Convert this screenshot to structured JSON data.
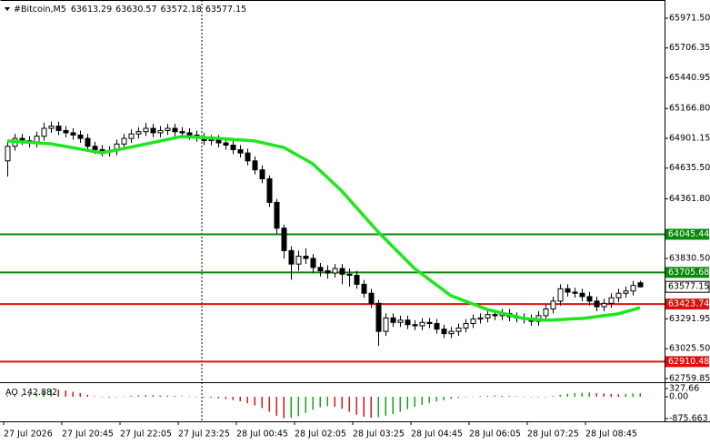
{
  "chart_data": {
    "type": "candlestick",
    "symbol": "#Bitcoin,M5",
    "categories": [
      "27 Jul 2026",
      null,
      null,
      null,
      null,
      null,
      null,
      null,
      "27 Jul 20:45",
      null,
      null,
      null,
      null,
      null,
      null,
      null,
      "27 Jul 22:05",
      null,
      null,
      null,
      null,
      null,
      null,
      null,
      "27 Jul 23:25",
      null,
      null,
      null,
      null,
      null,
      null,
      null,
      "28 Jul 00:45",
      null,
      null,
      null,
      null,
      null,
      null,
      null,
      "28 Jul 02:05",
      null,
      null,
      null,
      null,
      null,
      null,
      null,
      "28 Jul 03:25",
      null,
      null,
      null,
      null,
      null,
      null,
      null,
      "28 Jul 04:45",
      null,
      null,
      null,
      null,
      null,
      null,
      null,
      "28 Jul 06:05",
      null,
      null,
      null,
      null,
      null,
      null,
      null,
      "28 Jul 07:25",
      null,
      null,
      null,
      null,
      null,
      null,
      null,
      "28 Jul 08:45",
      null,
      null,
      null,
      null,
      null,
      null,
      null
    ],
    "open": [
      64700,
      64830,
      64900,
      64880,
      64860,
      64920,
      64990,
      65010,
      64970,
      64950,
      64930,
      64900,
      64830,
      64800,
      64780,
      64790,
      64850,
      64900,
      64940,
      64960,
      64990,
      64950,
      64970,
      64990,
      64960,
      64950,
      64930,
      64910,
      64880,
      64890,
      64860,
      64840,
      64800,
      64770,
      64700,
      64620,
      64540,
      64330,
      64100,
      63900,
      63780,
      63850,
      63830,
      63750,
      63720,
      63700,
      63740,
      63690,
      63680,
      63600,
      63520,
      63430,
      63180,
      63300,
      63260,
      63280,
      63240,
      63230,
      63260,
      63250,
      63200,
      63160,
      63180,
      63210,
      63250,
      63290,
      63300,
      63330,
      63320,
      63340,
      63310,
      63300,
      63290,
      63270,
      63320,
      63380,
      63450,
      63560,
      63530,
      63520,
      63490,
      63450,
      63400,
      63430,
      63480,
      63520,
      63540,
      63613.29
    ],
    "high": [
      64870,
      64940,
      64940,
      64920,
      64960,
      65040,
      65050,
      65050,
      65010,
      64990,
      64970,
      64940,
      64870,
      64840,
      64830,
      64890,
      64940,
      64980,
      65000,
      65040,
      65030,
      65010,
      65030,
      65030,
      65000,
      64990,
      64970,
      64950,
      64930,
      64930,
      64900,
      64880,
      64840,
      64810,
      64740,
      64660,
      64570,
      64360,
      64130,
      63940,
      63900,
      63920,
      63870,
      63790,
      63770,
      63780,
      63780,
      63740,
      63720,
      63640,
      63560,
      63460,
      63340,
      63340,
      63320,
      63320,
      63280,
      63300,
      63300,
      63290,
      63240,
      63220,
      63250,
      63290,
      63330,
      63340,
      63370,
      63370,
      63380,
      63380,
      63350,
      63340,
      63330,
      63360,
      63420,
      63490,
      63600,
      63600,
      63570,
      63560,
      63530,
      63490,
      63470,
      63520,
      63560,
      63580,
      63630,
      63630.57
    ],
    "low": [
      64560,
      64790,
      64840,
      64820,
      64820,
      64880,
      64950,
      64930,
      64910,
      64890,
      64860,
      64790,
      64760,
      64740,
      64740,
      64750,
      64810,
      64860,
      64900,
      64920,
      64910,
      64910,
      64930,
      64920,
      64910,
      64890,
      64870,
      64840,
      64840,
      64820,
      64800,
      64760,
      64730,
      64660,
      64580,
      64500,
      64290,
      64050,
      63830,
      63640,
      63720,
      63780,
      63700,
      63670,
      63650,
      63660,
      63600,
      63580,
      63560,
      63480,
      63390,
      63050,
      63140,
      63220,
      63220,
      63200,
      63190,
      63190,
      63210,
      63160,
      63120,
      63120,
      63140,
      63170,
      63210,
      63250,
      63260,
      63280,
      63280,
      63270,
      63260,
      63250,
      63230,
      63230,
      63280,
      63340,
      63410,
      63490,
      63480,
      63450,
      63410,
      63360,
      63360,
      63390,
      63440,
      63480,
      63500,
      63572.18
    ],
    "close": [
      64830,
      64900,
      64880,
      64860,
      64920,
      64990,
      65010,
      64970,
      64950,
      64930,
      64900,
      64830,
      64800,
      64780,
      64790,
      64850,
      64900,
      64940,
      64960,
      64990,
      64950,
      64970,
      64990,
      64960,
      64950,
      64930,
      64910,
      64880,
      64890,
      64860,
      64840,
      64800,
      64770,
      64700,
      64620,
      64540,
      64330,
      64100,
      63900,
      63780,
      63850,
      63830,
      63750,
      63720,
      63700,
      63740,
      63690,
      63680,
      63600,
      63520,
      63430,
      63180,
      63300,
      63260,
      63280,
      63240,
      63230,
      63260,
      63250,
      63200,
      63160,
      63180,
      63210,
      63250,
      63290,
      63300,
      63330,
      63320,
      63340,
      63310,
      63300,
      63290,
      63270,
      63320,
      63380,
      63450,
      63560,
      63530,
      63520,
      63490,
      63450,
      63400,
      63430,
      63480,
      63520,
      63540,
      63590,
      63577.15
    ],
    "ylim": [
      62727,
      66069
    ],
    "yticks": [
      {
        "value": 65971.5,
        "label": "65971.50"
      },
      65706.35,
      65440.95,
      {
        "value": 65166.8,
        "label": "65166.80"
      },
      64901.15,
      {
        "value": 64635.5,
        "label": "64635.50"
      },
      {
        "value": 64361.8,
        "label": "64361.80"
      },
      {
        "value": 63830.5,
        "label": "63830.50"
      },
      63291.95,
      {
        "value": 63025.5,
        "label": "63025.50"
      },
      62759.85
    ],
    "ma": {
      "color": "#1ee61e",
      "values": [
        64877,
        64873,
        64869,
        64865,
        64861,
        64856,
        64852,
        64840,
        64829,
        64817,
        64806,
        64794,
        64783,
        64771,
        64784,
        64797,
        64810,
        64823,
        64836,
        64850,
        64863,
        64877,
        64890,
        64904,
        64917,
        64914,
        64911,
        64907,
        64904,
        64901,
        64896,
        64891,
        64887,
        64882,
        64877,
        64863,
        64849,
        64834,
        64820,
        64784,
        64747,
        64711,
        64674,
        64613,
        64553,
        64492,
        64431,
        64358,
        64285,
        64212,
        64139,
        64066,
        64001,
        63936,
        63871,
        63806,
        63741,
        63692,
        63644,
        63595,
        63547,
        63498,
        63474,
        63449,
        63425,
        63400,
        63376,
        63360,
        63344,
        63327,
        63311,
        63295,
        63290,
        63284,
        63279,
        63282,
        63285,
        63289,
        63292,
        63295,
        63303,
        63311,
        63320,
        63328,
        63336,
        63355,
        63373,
        63392
      ]
    },
    "levels": [
      {
        "value": 64045.44,
        "color": "#0a8a0a"
      },
      {
        "value": 63705.68,
        "color": "#0a8a0a"
      },
      {
        "value": 63423.74,
        "color": "#e01010"
      },
      {
        "value": 62910.48,
        "color": "#e01010"
      }
    ],
    "ao": {
      "name": "AO",
      "ylim": [
        -985,
        510
      ],
      "yticks": [
        327.66,
        {
          "value": 0,
          "label": "0.00"
        },
        -875.663
      ],
      "up_color": "#16a316",
      "down_color": "#d01818",
      "values": [
        60,
        80,
        90,
        110,
        150,
        230,
        290,
        280,
        250,
        200,
        150,
        80,
        20,
        -20,
        -30,
        -10,
        10,
        40,
        60,
        70,
        60,
        50,
        40,
        30,
        20,
        10,
        -10,
        -30,
        -40,
        -60,
        -90,
        -130,
        -180,
        -260,
        -350,
        -450,
        -600,
        -760,
        -860,
        -850,
        -780,
        -650,
        -520,
        -420,
        -380,
        -400,
        -480,
        -600,
        -720,
        -800,
        -840,
        -820,
        -760,
        -690,
        -600,
        -500,
        -400,
        -320,
        -250,
        -190,
        -140,
        -90,
        -50,
        -20,
        10,
        30,
        40,
        50,
        40,
        30,
        20,
        10,
        -10,
        -20,
        0,
        30,
        80,
        120,
        150,
        160,
        170,
        150,
        130,
        110,
        100,
        110,
        130,
        142.882
      ]
    }
  }
}
